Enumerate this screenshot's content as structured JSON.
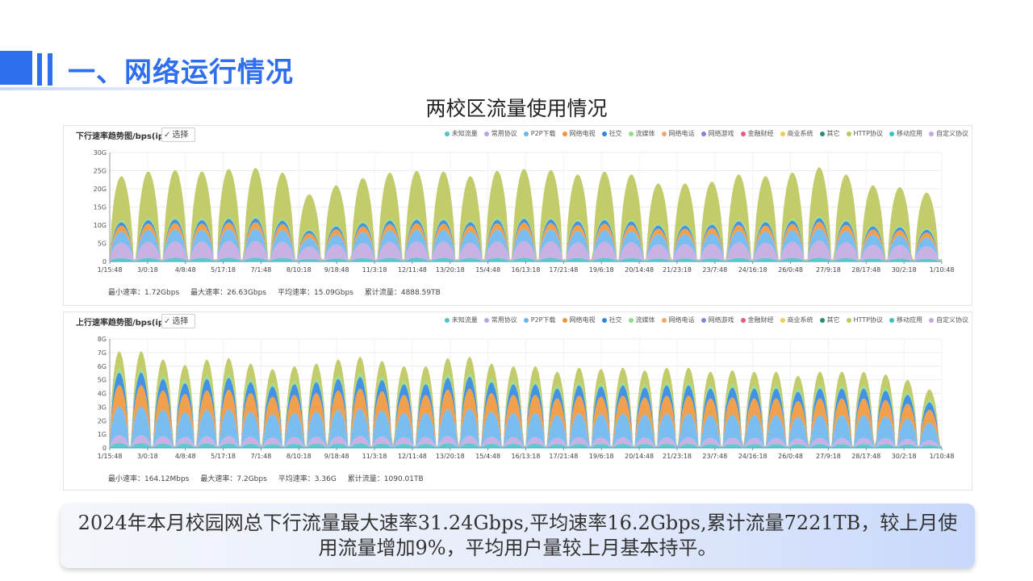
{
  "header": {
    "title": "一、网络运行情况"
  },
  "section_title": "两校区流量使用情况",
  "legend": [
    {
      "name": "未知流量",
      "color": "#4fc3c8"
    },
    {
      "name": "常用协议",
      "color": "#b9a3e0"
    },
    {
      "name": "P2P下载",
      "color": "#6cb6ee"
    },
    {
      "name": "网络电视",
      "color": "#f0963a"
    },
    {
      "name": "社交",
      "color": "#2f86e0"
    },
    {
      "name": "流媒体",
      "color": "#8fdc8a"
    },
    {
      "name": "网络电话",
      "color": "#f3a56a"
    },
    {
      "name": "网络游戏",
      "color": "#7f86d8"
    },
    {
      "name": "金融财经",
      "color": "#e85a7a"
    },
    {
      "name": "商业系统",
      "color": "#f2cb55"
    },
    {
      "name": "其它",
      "color": "#2f8a7a"
    },
    {
      "name": "HTTP协议",
      "color": "#bdc75a"
    },
    {
      "name": "移动应用",
      "color": "#3fc0c0"
    },
    {
      "name": "自定义协议",
      "color": "#c3a8e0"
    }
  ],
  "select_label": "选择",
  "x_ticks": [
    "1/15:48",
    "3/0:18",
    "4/8:48",
    "5/17:18",
    "7/1:48",
    "8/10:18",
    "9/18:48",
    "11/3:18",
    "12/11:48",
    "13/20:18",
    "15/4:48",
    "16/13:18",
    "17/21:48",
    "19/6:18",
    "20/14:48",
    "21/23:18",
    "23/7:48",
    "24/16:18",
    "26/0:48",
    "27/9:18",
    "28/17:48",
    "30/2:18",
    "1/10:48"
  ],
  "chart_data": [
    {
      "type": "area",
      "title": "下行速率趋势图/bps(ip",
      "y_ticks": [
        "0",
        "5G",
        "10G",
        "15G",
        "20G",
        "25G",
        "30G"
      ],
      "ylim": [
        0,
        30
      ],
      "unit": "G",
      "peaks": [
        23.5,
        24.8,
        25.2,
        24.8,
        25.5,
        25.8,
        24.5,
        18.5,
        21,
        23,
        24.5,
        25,
        24.8,
        23.5,
        25,
        25.5,
        25.2,
        24,
        24.8,
        24,
        21.5,
        21.5,
        22,
        24,
        23.5,
        24.5,
        26,
        24,
        21,
        20.5,
        19
      ],
      "legend_position": "top-right",
      "stats": {
        "min": "最小速率：1.72Gbps",
        "max": "最大速率：26.63Gbps",
        "avg": "平均速率：15.09Gbps",
        "total": "累计流量：4888.59TB"
      }
    },
    {
      "type": "area",
      "title": "上行速率趋势图/bps(ip",
      "y_ticks": [
        "0",
        "1G",
        "2G",
        "3G",
        "4G",
        "5G",
        "6G",
        "7G",
        "8G"
      ],
      "ylim": [
        0,
        8
      ],
      "unit": "G",
      "peaks": [
        7.1,
        7.1,
        6.5,
        6.1,
        6.5,
        6.6,
        6.2,
        5.8,
        6.0,
        6.2,
        6.5,
        6.7,
        6.4,
        6.0,
        6.0,
        6.6,
        6.7,
        6.2,
        6.0,
        6.0,
        5.6,
        5.9,
        5.8,
        5.9,
        5.7,
        5.9,
        5.9,
        5.6,
        5.7,
        5.6,
        5.6,
        5.3,
        5.6,
        5.6,
        5.6,
        5.4,
        5.0,
        4.3
      ],
      "legend_position": "top-right",
      "stats": {
        "min": "最小速率：164.12Mbps",
        "max": "最大速率：7.2Gbps",
        "avg": "平均速率：3.36G",
        "total": "累计流量：1090.01TB"
      }
    }
  ],
  "note": "2024年本月校园网总下行流量最大速率31.24Gbps,平均速率16.2Gbps,累计流量7221TB，较上月使用流量增加9%，平均用户量较上月基本持平。"
}
